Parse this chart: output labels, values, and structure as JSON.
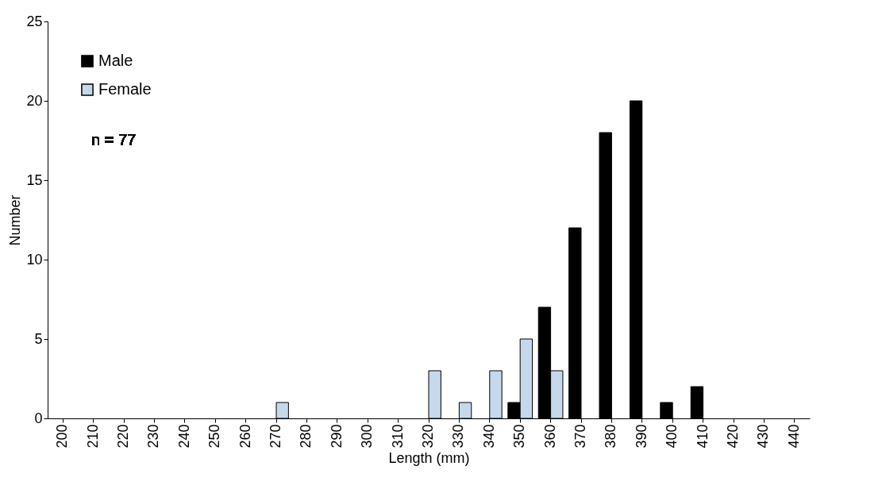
{
  "chart_data": {
    "type": "bar",
    "xlabel": "Length (mm)",
    "ylabel": "Number",
    "categories": [
      "200",
      "210",
      "220",
      "230",
      "240",
      "250",
      "260",
      "270",
      "280",
      "290",
      "300",
      "310",
      "320",
      "330",
      "340",
      "350",
      "360",
      "370",
      "380",
      "390",
      "400",
      "410",
      "420",
      "430",
      "440"
    ],
    "series": [
      {
        "name": "Male",
        "color": "#000000",
        "values": [
          0,
          0,
          0,
          0,
          0,
          0,
          0,
          0,
          0,
          0,
          0,
          0,
          0,
          0,
          0,
          1,
          7,
          12,
          18,
          20,
          1,
          2,
          0,
          0,
          0
        ]
      },
      {
        "name": "Female",
        "color": "#c6d9ec",
        "values": [
          0,
          0,
          0,
          0,
          0,
          0,
          0,
          1,
          0,
          0,
          0,
          0,
          3,
          1,
          3,
          5,
          3,
          0,
          0,
          0,
          0,
          0,
          0,
          0,
          0
        ]
      }
    ],
    "ylim": [
      0,
      25
    ],
    "yticks": [
      0,
      5,
      10,
      15,
      20,
      25
    ],
    "legend": "top left",
    "annotations": [
      "n = 77"
    ]
  }
}
